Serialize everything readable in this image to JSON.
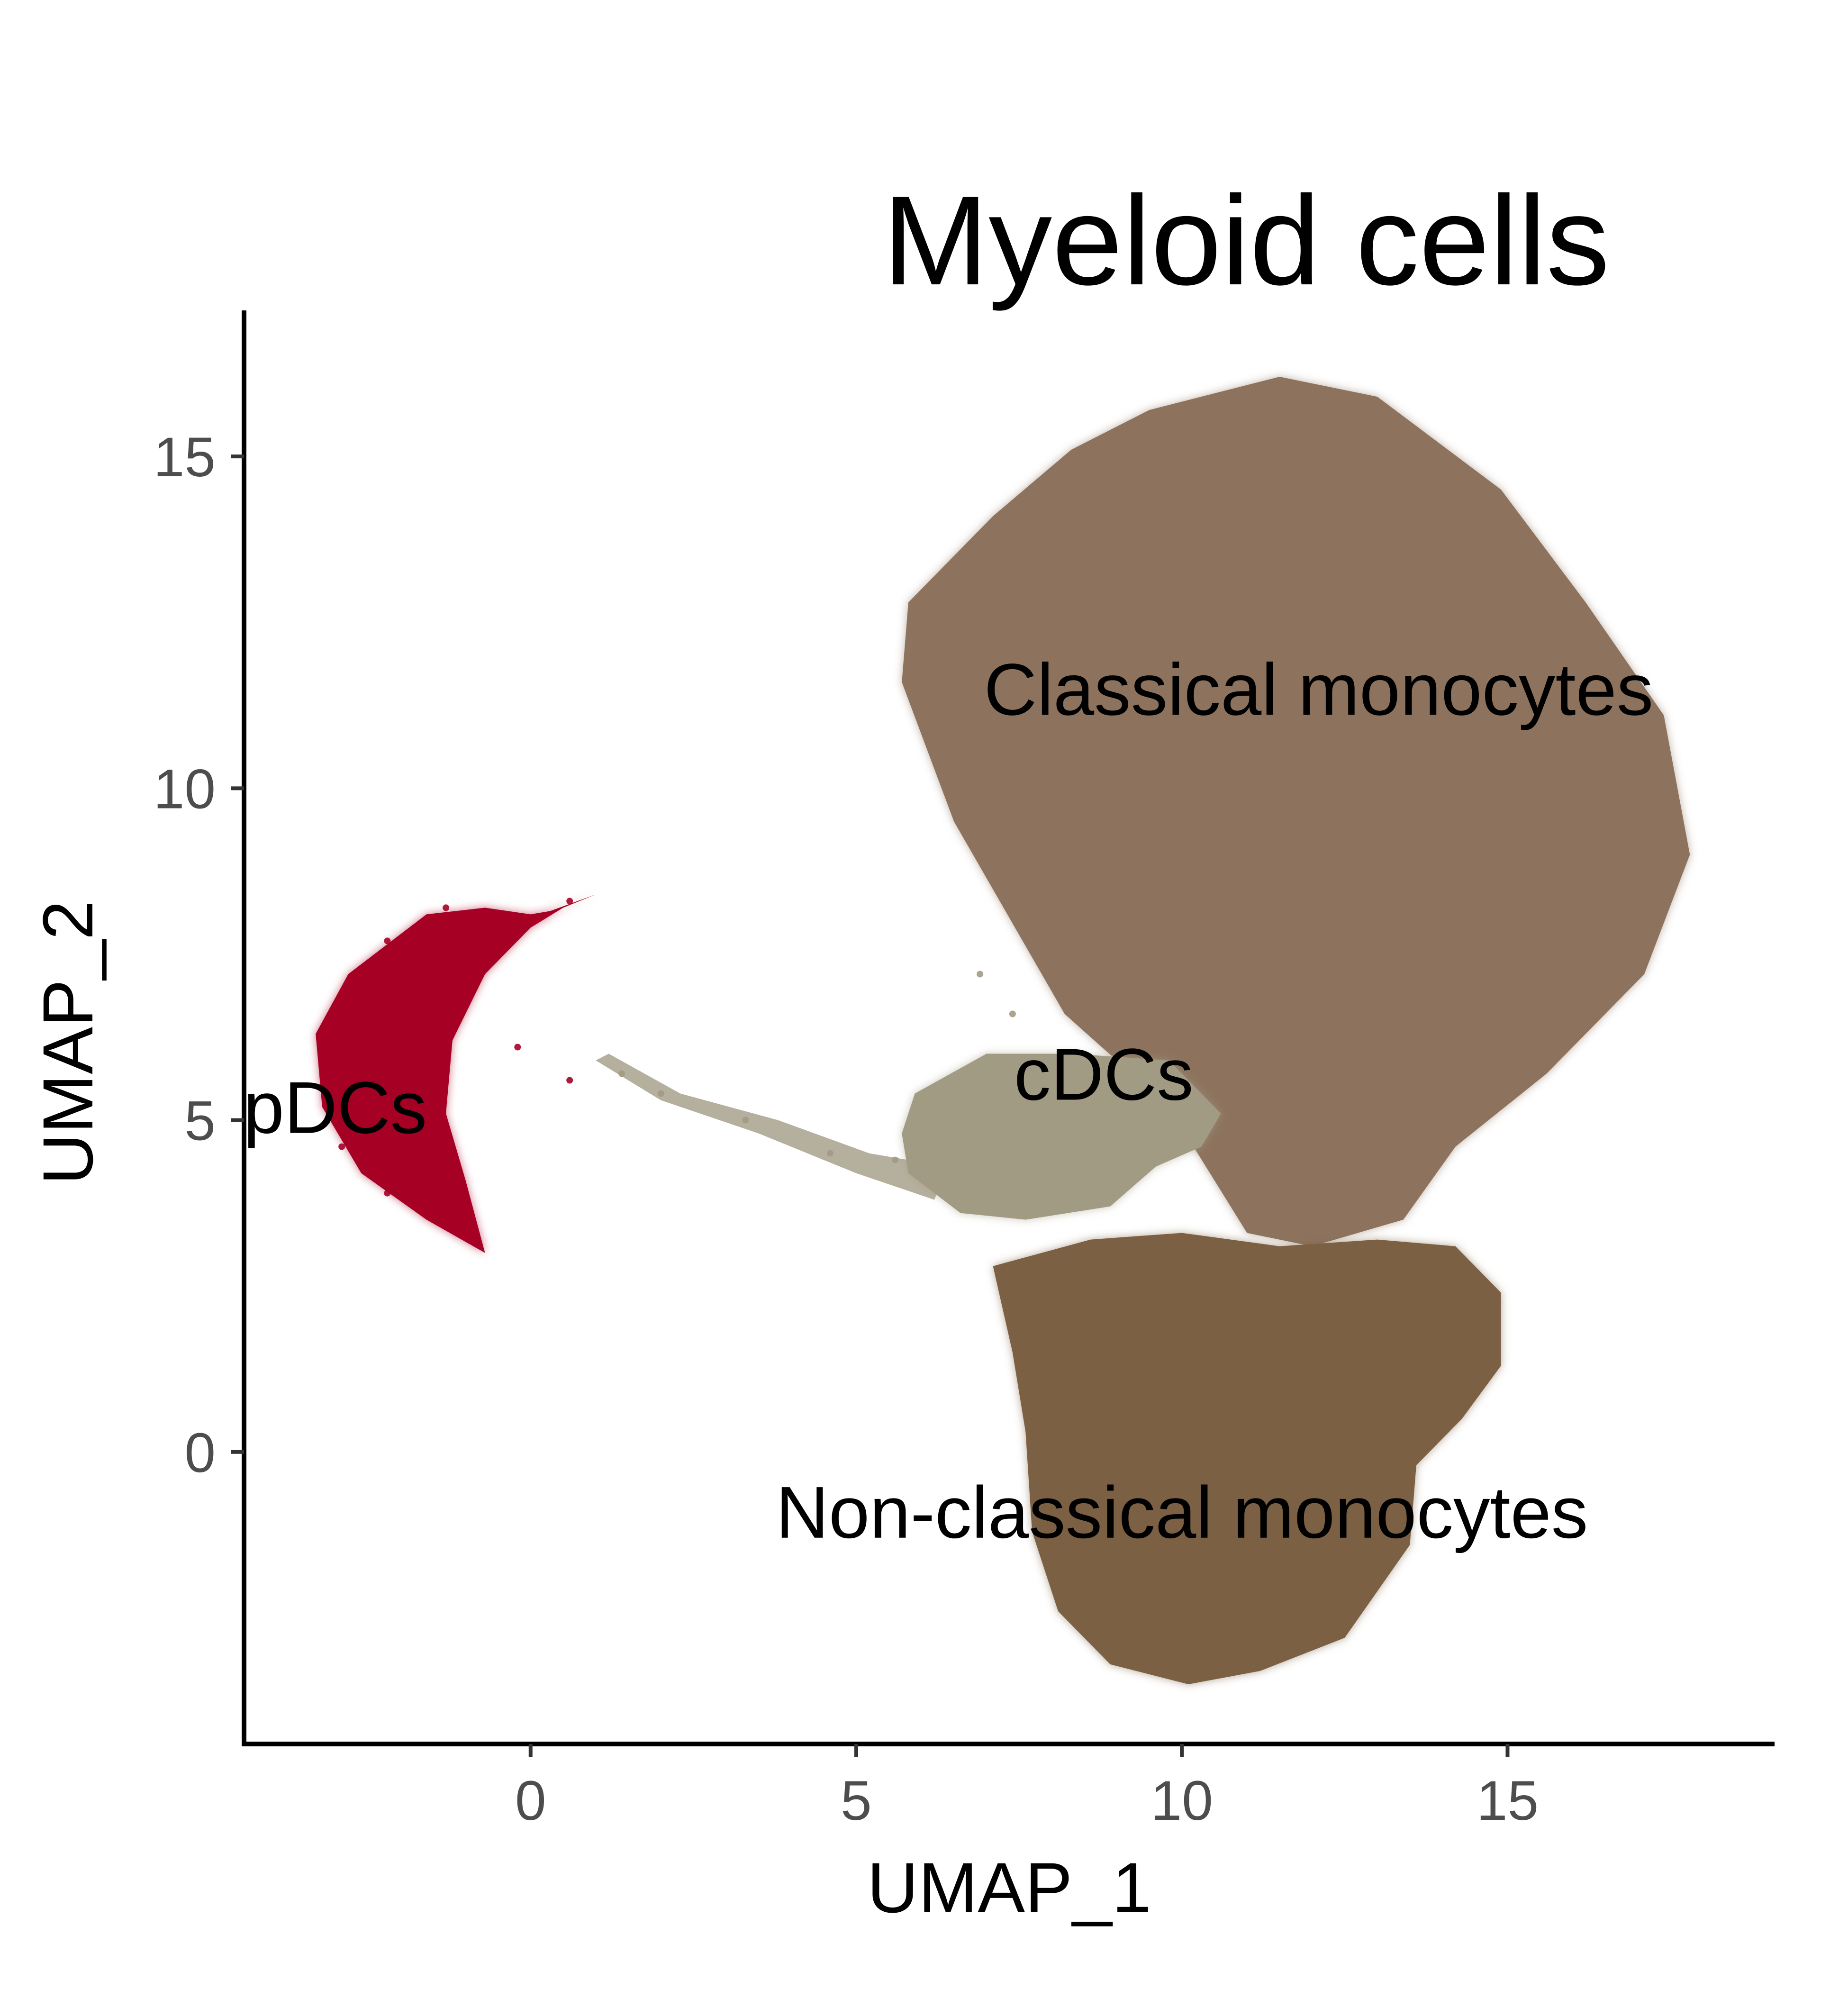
{
  "chart_data": {
    "type": "scatter",
    "title": "Myeloid cells",
    "xlabel": "UMAP_1",
    "ylabel": "UMAP_2",
    "xlim": [
      -4.4,
      19.1
    ],
    "ylim": [
      -4.4,
      17.2
    ],
    "xticks": [
      0,
      5,
      10,
      15
    ],
    "yticks": [
      0,
      5,
      10,
      15
    ],
    "grid": false,
    "legend": "none",
    "series": [
      {
        "name": "Classical monocytes",
        "color": "#8d735e",
        "label_position": [
          12.1,
          11.5
        ],
        "outline": [
          [
            9.5,
            15.7
          ],
          [
            11.5,
            16.2
          ],
          [
            13.0,
            15.9
          ],
          [
            14.9,
            14.5
          ],
          [
            16.2,
            12.8
          ],
          [
            17.4,
            11.1
          ],
          [
            17.8,
            9.0
          ],
          [
            17.1,
            7.2
          ],
          [
            15.6,
            5.7
          ],
          [
            14.2,
            4.6
          ],
          [
            13.4,
            3.5
          ],
          [
            12.0,
            3.1
          ],
          [
            11.0,
            3.3
          ],
          [
            9.8,
            5.2
          ],
          [
            8.2,
            6.6
          ],
          [
            6.5,
            9.5
          ],
          [
            5.7,
            11.6
          ],
          [
            5.8,
            12.8
          ],
          [
            7.1,
            14.1
          ],
          [
            8.3,
            15.1
          ]
        ],
        "points": [
          [
            8.5,
            14.9
          ],
          [
            10.2,
            15.8
          ],
          [
            12.0,
            16.0
          ],
          [
            14.0,
            15.0
          ],
          [
            15.5,
            13.6
          ],
          [
            16.5,
            11.8
          ],
          [
            17.2,
            9.6
          ],
          [
            16.7,
            7.6
          ],
          [
            15.2,
            6.0
          ],
          [
            13.8,
            5.0
          ],
          [
            12.6,
            4.2
          ],
          [
            11.5,
            5.8
          ],
          [
            10.0,
            7.4
          ],
          [
            8.0,
            9.4
          ],
          [
            6.9,
            11.2
          ],
          [
            6.4,
            12.6
          ],
          [
            9.0,
            12.8
          ],
          [
            11.2,
            11.0
          ],
          [
            13.6,
            9.5
          ],
          [
            12.4,
            7.6
          ]
        ]
      },
      {
        "name": "Non-classical monocytes",
        "color": "#7b6044",
        "label_position": [
          10.0,
          -0.9
        ],
        "outline": [
          [
            7.1,
            2.8
          ],
          [
            8.6,
            3.2
          ],
          [
            10.0,
            3.3
          ],
          [
            11.5,
            3.1
          ],
          [
            13.0,
            3.2
          ],
          [
            14.2,
            3.1
          ],
          [
            14.9,
            2.4
          ],
          [
            14.9,
            1.3
          ],
          [
            14.3,
            0.5
          ],
          [
            13.6,
            -0.2
          ],
          [
            13.5,
            -1.4
          ],
          [
            12.5,
            -2.8
          ],
          [
            11.2,
            -3.3
          ],
          [
            10.1,
            -3.5
          ],
          [
            8.9,
            -3.2
          ],
          [
            8.1,
            -2.4
          ],
          [
            7.7,
            -1.2
          ],
          [
            7.6,
            0.3
          ],
          [
            7.4,
            1.5
          ]
        ],
        "points": [
          [
            7.8,
            2.4
          ],
          [
            9.3,
            2.9
          ],
          [
            11.0,
            2.8
          ],
          [
            12.8,
            2.7
          ],
          [
            14.3,
            2.3
          ],
          [
            14.5,
            1.2
          ],
          [
            13.8,
            0.4
          ],
          [
            13.1,
            -0.8
          ],
          [
            12.3,
            -2.2
          ],
          [
            10.8,
            -2.9
          ],
          [
            9.3,
            -2.7
          ],
          [
            8.4,
            -1.7
          ],
          [
            8.0,
            -0.4
          ],
          [
            8.0,
            1.1
          ],
          [
            9.8,
            1.2
          ],
          [
            11.6,
            0.9
          ],
          [
            10.6,
            -0.8
          ],
          [
            12.6,
            1.6
          ]
        ]
      },
      {
        "name": "cDCs",
        "color": "#a29b84",
        "label_position": [
          8.8,
          5.7
        ],
        "outline": [
          [
            5.9,
            5.4
          ],
          [
            7.0,
            6.0
          ],
          [
            8.3,
            6.0
          ],
          [
            9.8,
            5.9
          ],
          [
            10.6,
            5.1
          ],
          [
            10.3,
            4.6
          ],
          [
            9.6,
            4.3
          ],
          [
            8.9,
            3.7
          ],
          [
            7.6,
            3.5
          ],
          [
            6.6,
            3.6
          ],
          [
            5.8,
            4.2
          ],
          [
            5.7,
            4.8
          ]
        ],
        "tail": [
          [
            1.0,
            5.9
          ],
          [
            2.0,
            5.3
          ],
          [
            3.5,
            4.8
          ],
          [
            5.0,
            4.2
          ],
          [
            6.2,
            3.8
          ],
          [
            6.4,
            4.3
          ],
          [
            5.2,
            4.5
          ],
          [
            3.8,
            5.0
          ],
          [
            2.3,
            5.4
          ],
          [
            1.2,
            6.0
          ]
        ],
        "points": [
          [
            6.2,
            5.2
          ],
          [
            7.2,
            5.6
          ],
          [
            8.5,
            5.5
          ],
          [
            9.6,
            5.3
          ],
          [
            10.2,
            4.8
          ],
          [
            9.2,
            4.4
          ],
          [
            8.0,
            3.9
          ],
          [
            6.8,
            3.9
          ],
          [
            6.0,
            4.5
          ],
          [
            2.0,
            5.4
          ],
          [
            3.3,
            5.0
          ],
          [
            4.6,
            4.5
          ],
          [
            1.4,
            5.7
          ],
          [
            7.4,
            6.6
          ],
          [
            6.9,
            7.2
          ],
          [
            5.6,
            4.4
          ]
        ]
      },
      {
        "name": "pDCs",
        "color": "#a60025",
        "label_position": [
          -3.0,
          5.2
        ],
        "outline": [
          [
            -2.8,
            7.2
          ],
          [
            -1.6,
            8.1
          ],
          [
            -0.7,
            8.2
          ],
          [
            0.0,
            8.1
          ],
          [
            0.3,
            8.15
          ],
          [
            1.0,
            8.4
          ],
          [
            0.5,
            8.2
          ],
          [
            0.0,
            7.9
          ],
          [
            -0.7,
            7.2
          ],
          [
            -1.2,
            6.2
          ],
          [
            -1.3,
            5.1
          ],
          [
            -1.0,
            4.1
          ],
          [
            -0.7,
            3.0
          ],
          [
            -1.6,
            3.5
          ],
          [
            -2.6,
            4.2
          ],
          [
            -3.2,
            5.2
          ],
          [
            -3.3,
            6.3
          ]
        ],
        "points": [
          [
            -2.9,
            6.8
          ],
          [
            -2.2,
            7.7
          ],
          [
            -1.3,
            8.2
          ],
          [
            -0.3,
            8.0
          ],
          [
            0.6,
            8.3
          ],
          [
            -0.9,
            7.3
          ],
          [
            -1.6,
            6.2
          ],
          [
            -3.1,
            5.6
          ],
          [
            -2.9,
            4.6
          ],
          [
            -2.2,
            3.9
          ],
          [
            -1.2,
            3.4
          ],
          [
            -1.5,
            4.8
          ],
          [
            -2.4,
            5.4
          ],
          [
            -0.2,
            6.1
          ],
          [
            0.6,
            5.6
          ]
        ]
      }
    ]
  }
}
